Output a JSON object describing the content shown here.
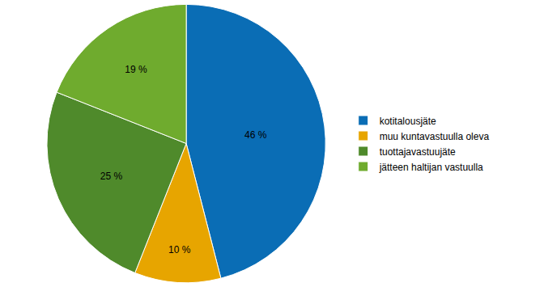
{
  "chart_data": {
    "type": "pie",
    "categories": [
      "kotitalousjäte",
      "muu kuntavastuulla oleva",
      "tuottajavastuujäte",
      "jätteen haltijan vastuulla"
    ],
    "values": [
      46,
      10,
      25,
      19
    ],
    "value_labels": [
      "46 %",
      "10 %",
      "25 %",
      "19 %"
    ],
    "colors": [
      "#0a6db5",
      "#e7a500",
      "#4f8a2b",
      "#6fab2e"
    ],
    "data_labels": true,
    "legend": "right"
  }
}
